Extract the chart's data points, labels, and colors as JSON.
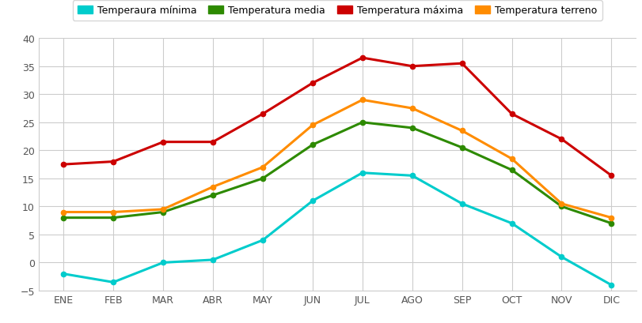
{
  "months": [
    "ENE",
    "FEB",
    "MAR",
    "ABR",
    "MAY",
    "JUN",
    "JUL",
    "AGO",
    "SEP",
    "OCT",
    "NOV",
    "DIC"
  ],
  "temp_min": [
    -2,
    -3.5,
    0,
    0.5,
    4,
    11,
    16,
    15.5,
    10.5,
    7,
    1,
    -4
  ],
  "temp_media": [
    8,
    8,
    9,
    12,
    15,
    21,
    25,
    24,
    20.5,
    16.5,
    10,
    7
  ],
  "temp_max": [
    17.5,
    18,
    21.5,
    21.5,
    26.5,
    32,
    36.5,
    35,
    35.5,
    26.5,
    22,
    15.5
  ],
  "temp_terreno": [
    9,
    9,
    9.5,
    13.5,
    17,
    24.5,
    29,
    27.5,
    23.5,
    18.5,
    10.5,
    8
  ],
  "colors": {
    "min": "#00CCCC",
    "media": "#2D8A00",
    "max": "#CC0000",
    "terreno": "#FF8C00"
  },
  "legend_labels": [
    "Temperaura mínima",
    "Temperatura media",
    "Temperatura máxima",
    "Temperatura terreno"
  ],
  "ylim": [
    -5,
    40
  ],
  "yticks": [
    -5,
    0,
    5,
    10,
    15,
    20,
    25,
    30,
    35,
    40
  ],
  "background_color": "#ffffff",
  "grid_color": "#cccccc",
  "linewidth": 2.2,
  "markersize": 4.5,
  "figure_width": 8.12,
  "figure_height": 4.1,
  "dpi": 100
}
